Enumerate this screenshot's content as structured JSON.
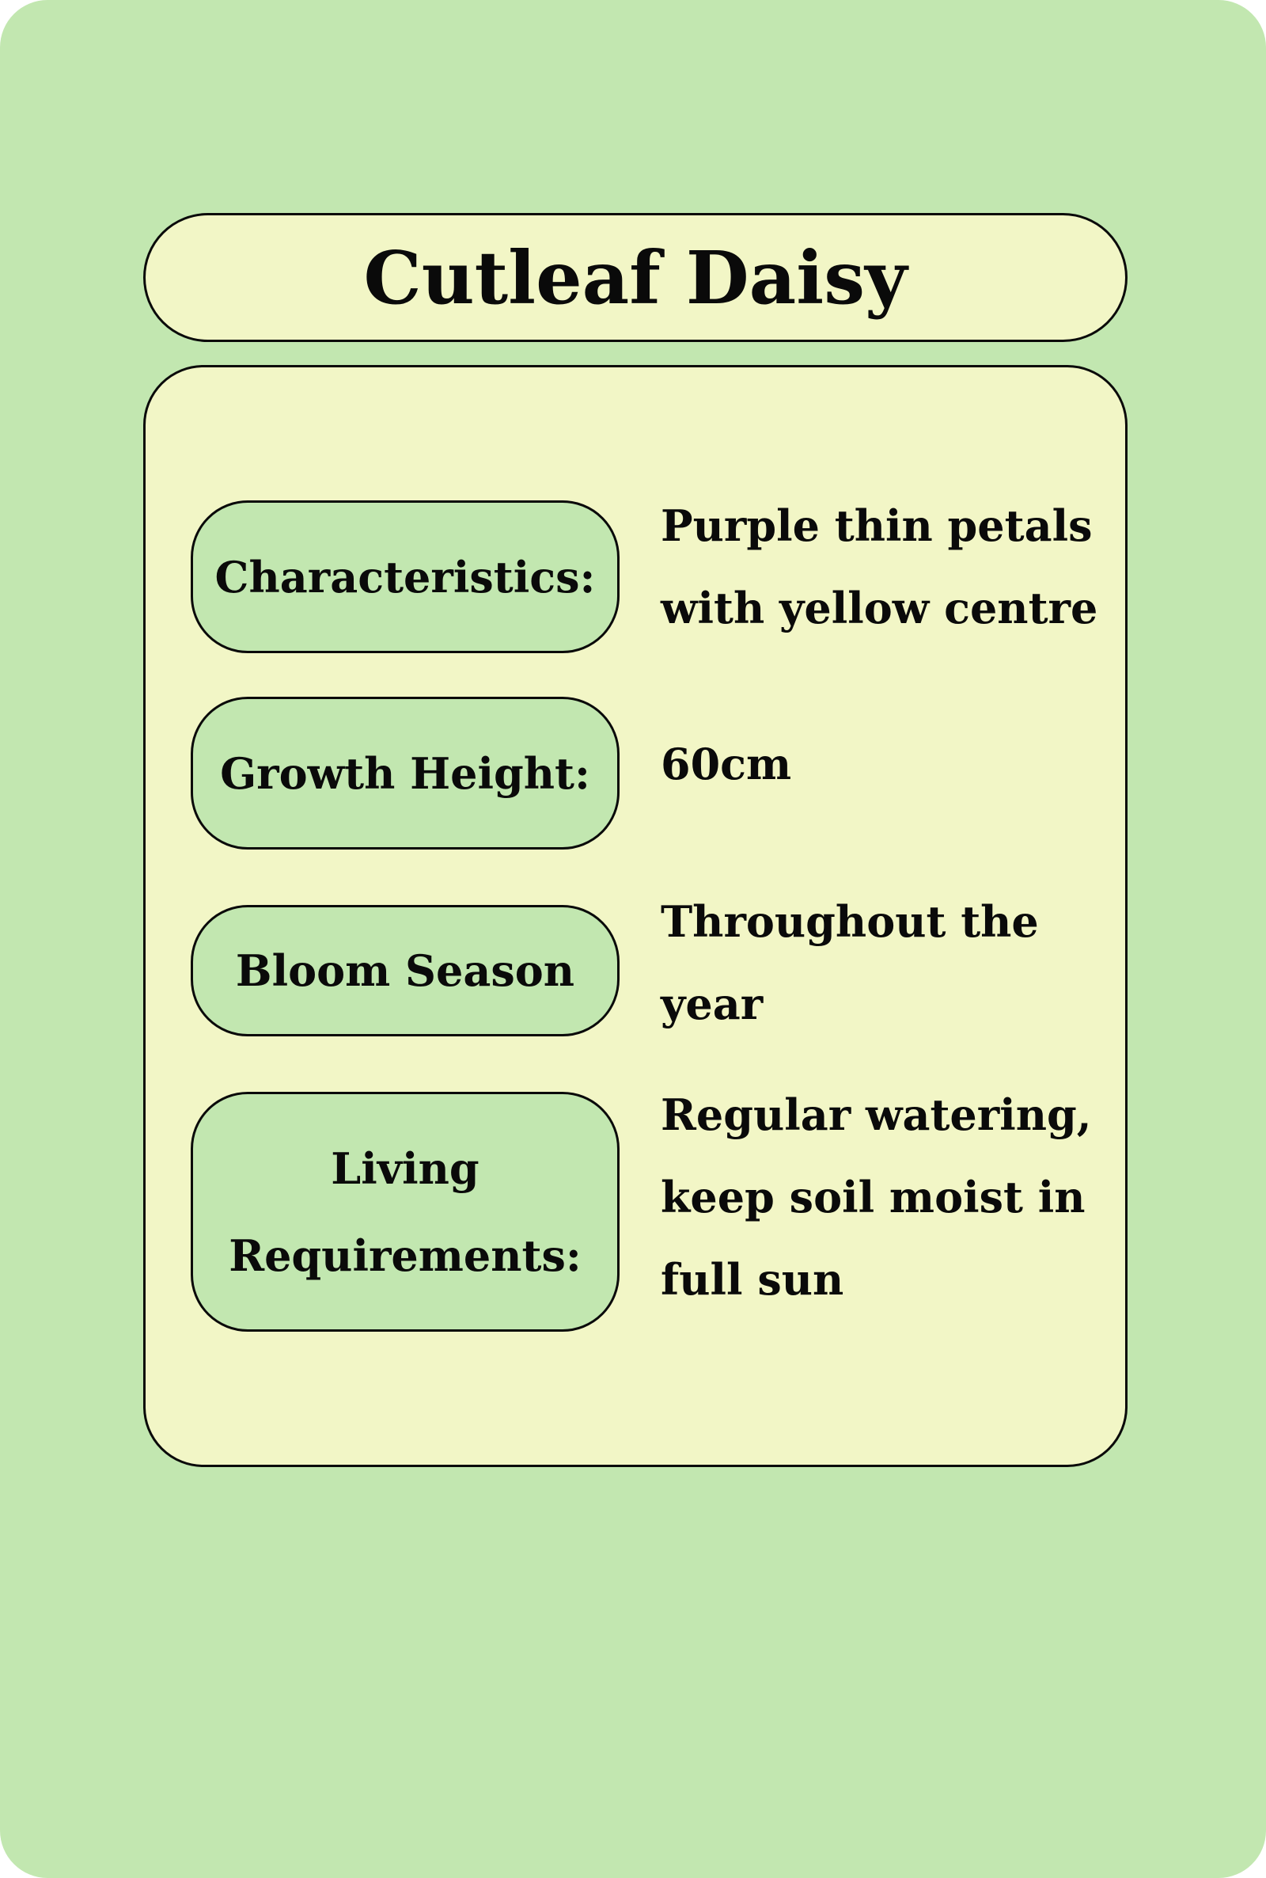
{
  "title": "Cutleaf Daisy",
  "colors": {
    "background": "#c2e7b0",
    "panel": "#f2f6c6",
    "label_pill": "#c2e7b0",
    "border": "#0a0a0a"
  },
  "rows": [
    {
      "label": "Characteristics:",
      "value": "Purple thin petals with yellow centre"
    },
    {
      "label": "Growth Height:",
      "value": "60cm"
    },
    {
      "label": "Bloom Season",
      "value": "Throughout the year"
    },
    {
      "label": "Living Requirements:",
      "value": "Regular watering, keep soil moist in full sun"
    }
  ]
}
